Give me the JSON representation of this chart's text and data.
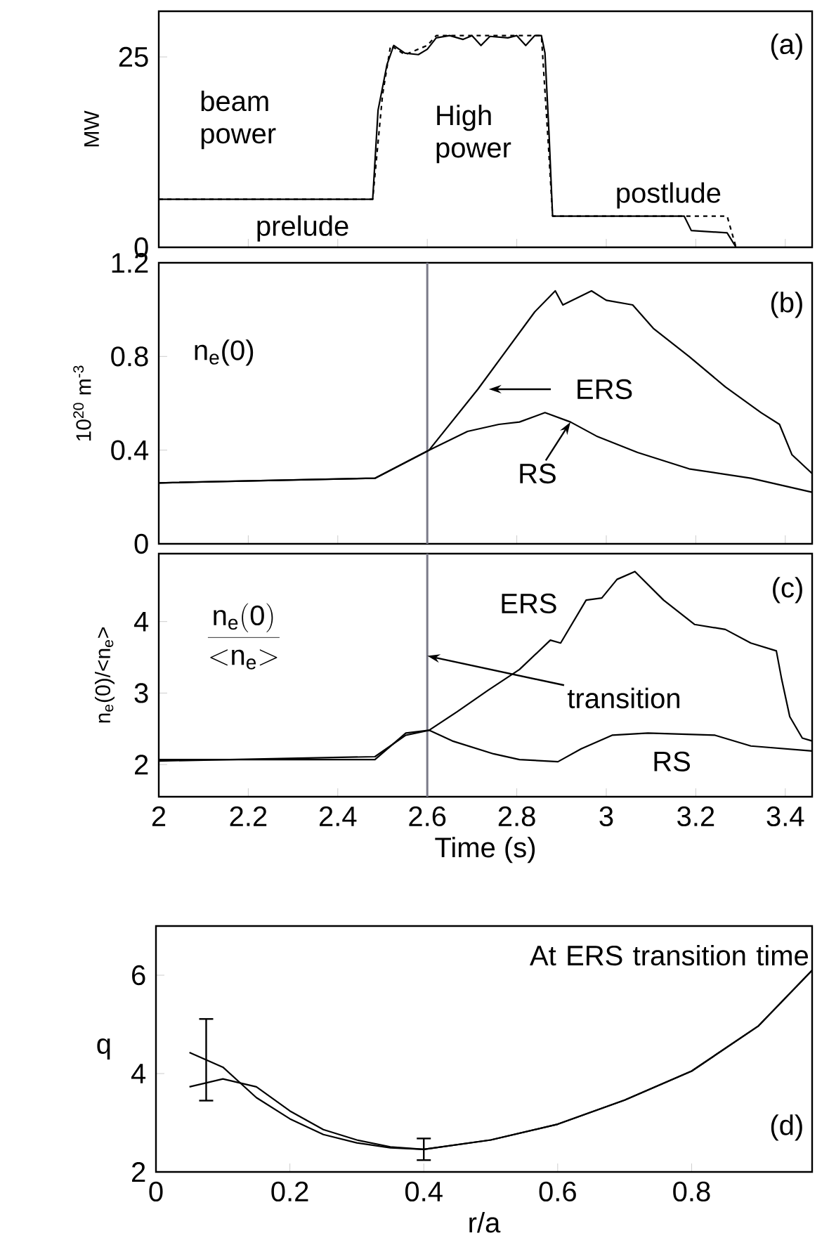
{
  "chart_data": [
    {
      "type": "line",
      "ylabel": "MW",
      "xlim": [
        2,
        3.46
      ],
      "xticks": [
        2,
        2.2,
        2.4,
        2.6,
        2.8,
        3,
        3.2,
        3.4
      ],
      "ylim": [
        0,
        31
      ],
      "yticks": [
        0,
        25
      ],
      "tick_labels": "y",
      "series": [
        {
          "color": "#000000",
          "line_style": "solid",
          "x": [
            2,
            2.478,
            2.49,
            2.5,
            2.51,
            2.525,
            2.55,
            2.58,
            2.6,
            2.62,
            2.65,
            2.68,
            2.7,
            2.72,
            2.74,
            2.78,
            2.8,
            2.82,
            2.84,
            2.855,
            2.863,
            2.872,
            2.88,
            3.174,
            3.19,
            3.27,
            3.29
          ],
          "values": [
            6.3,
            6.3,
            18,
            21,
            24,
            26.5,
            25.5,
            25.3,
            26,
            27.5,
            27.8,
            27.3,
            27.8,
            26.5,
            27.7,
            27.5,
            27.8,
            26.5,
            27.8,
            27.8,
            25.5,
            15,
            4.1,
            4.1,
            2.2,
            1.9,
            0
          ]
        },
        {
          "color": "#000000",
          "line_style": "dashed",
          "x": [
            2,
            2.478,
            2.5,
            2.518,
            2.55,
            2.6,
            2.62,
            2.7,
            2.8,
            2.855,
            2.87,
            2.88,
            3.27,
            3.29
          ],
          "values": [
            6.3,
            6.3,
            20,
            26.5,
            25.3,
            26.5,
            27.8,
            27.8,
            27.8,
            27.8,
            14,
            4.1,
            4.1,
            0
          ]
        }
      ],
      "annotations": [
        "beam power",
        "High power",
        "prelude",
        "postlude",
        "(a)"
      ]
    },
    {
      "type": "line",
      "ylabel": "10$^{20}$ m$^{-3}$",
      "xlim": [
        2,
        3.46
      ],
      "xticks": [
        2,
        2.2,
        2.4,
        2.6,
        2.8,
        3,
        3.2,
        3.4
      ],
      "ylim": [
        0,
        1.2
      ],
      "yticks": [
        0,
        0.4,
        0.8,
        1.2
      ],
      "tick_labels": "y",
      "ref_lines": [
        {
          "axis": "x",
          "value": 2.6,
          "color": "#7a7a88"
        }
      ],
      "series": [
        {
          "color": "#000000",
          "x": [
            2,
            2.483,
            2.604,
            2.713,
            2.84,
            2.886,
            2.903,
            2.967,
            3.0,
            3.059,
            3.105,
            3.185,
            3.266,
            3.346,
            3.387,
            3.415,
            3.46
          ],
          "values": [
            0.26,
            0.28,
            0.4,
            0.66,
            0.99,
            1.08,
            1.02,
            1.08,
            1.04,
            1.02,
            0.92,
            0.8,
            0.67,
            0.56,
            0.51,
            0.38,
            0.3
          ]
        },
        {
          "color": "#000000",
          "x": [
            2,
            2.483,
            2.604,
            2.69,
            2.76,
            2.806,
            2.863,
            2.92,
            2.978,
            3.07,
            3.185,
            3.323,
            3.46
          ],
          "values": [
            0.26,
            0.28,
            0.4,
            0.48,
            0.51,
            0.52,
            0.56,
            0.52,
            0.46,
            0.39,
            0.32,
            0.28,
            0.22
          ]
        }
      ],
      "annotations": [
        "n$_{e}$(0)",
        "ERS",
        {
          "text": "RS",
          "x": 2.92,
          "y": 0.52
        },
        "(b)"
      ]
    },
    {
      "type": "line",
      "xlabel": "Time (s)",
      "ylabel": "n$_{e}$(0)/<n$_{e}$>",
      "xlim": [
        2,
        3.46
      ],
      "xticks": [
        2,
        2.2,
        2.4,
        2.6,
        2.8,
        3,
        3.2,
        3.4
      ],
      "ylim": [
        1.55,
        4.95
      ],
      "yticks": [
        2,
        3,
        4
      ],
      "ref_lines": [
        {
          "axis": "x",
          "value": 2.6,
          "color": "#7a7a88"
        }
      ],
      "series": [
        {
          "color": "#000000",
          "x": [
            2,
            2.483,
            2.552,
            2.604,
            2.667,
            2.736,
            2.806,
            2.875,
            2.898,
            2.955,
            2.99,
            3.024,
            3.064,
            3.128,
            3.197,
            3.266,
            3.323,
            3.38,
            3.392,
            3.41,
            3.438,
            3.46
          ],
          "values": [
            2.07,
            2.07,
            2.44,
            2.48,
            2.74,
            3.04,
            3.33,
            3.74,
            3.7,
            4.3,
            4.33,
            4.59,
            4.7,
            4.3,
            3.96,
            3.89,
            3.7,
            3.59,
            3.19,
            2.67,
            2.37,
            2.33
          ]
        },
        {
          "color": "#000000",
          "x": [
            2,
            2.483,
            2.552,
            2.604,
            2.656,
            2.748,
            2.806,
            2.892,
            2.944,
            3.013,
            3.093,
            3.243,
            3.323,
            3.46
          ],
          "values": [
            2.05,
            2.11,
            2.41,
            2.48,
            2.33,
            2.15,
            2.07,
            2.04,
            2.22,
            2.41,
            2.44,
            2.41,
            2.26,
            2.19
          ]
        }
      ],
      "annotations": [
        "\\frac{\\mathrm{n_{e}(0)}}{\\mathrm{{<}n_{e}{>}}}",
        "ERS",
        {
          "text": "transition",
          "x": 2.6,
          "y": 3.52
        },
        "RS",
        "(c)"
      ]
    },
    {
      "type": "line",
      "xlabel": "r/a",
      "ylabel": "q",
      "xlim": [
        0,
        0.98
      ],
      "xticks": [
        0,
        0.2,
        0.4,
        0.6,
        0.8
      ],
      "ylim": [
        2,
        7
      ],
      "yticks": [
        2,
        4,
        6
      ],
      "series": [
        {
          "color": "#000000",
          "x": [
            0.05,
            0.075,
            0.1,
            0.15,
            0.2,
            0.25,
            0.3,
            0.35,
            0.4,
            0.5,
            0.6,
            0.7,
            0.8,
            0.9,
            0.98
          ],
          "values": [
            4.43,
            4.28,
            4.13,
            3.51,
            3.08,
            2.76,
            2.59,
            2.49,
            2.46,
            2.65,
            2.97,
            3.46,
            4.05,
            4.97,
            6.1
          ],
          "errors": [
            null,
            0.83,
            null,
            null,
            null,
            null,
            null,
            null,
            0.22,
            null,
            null,
            null,
            null,
            null,
            null
          ]
        },
        {
          "color": "#000000",
          "x": [
            0.05,
            0.1,
            0.15,
            0.2,
            0.25,
            0.3,
            0.35,
            0.4,
            0.5,
            0.6,
            0.7,
            0.8,
            0.9,
            0.98
          ],
          "values": [
            3.73,
            3.89,
            3.73,
            3.24,
            2.86,
            2.65,
            2.51,
            2.46,
            2.65,
            2.97,
            3.46,
            4.05,
            4.97,
            6.1
          ]
        }
      ],
      "annotations": [
        "At ERS transition time",
        "(d)"
      ]
    }
  ]
}
